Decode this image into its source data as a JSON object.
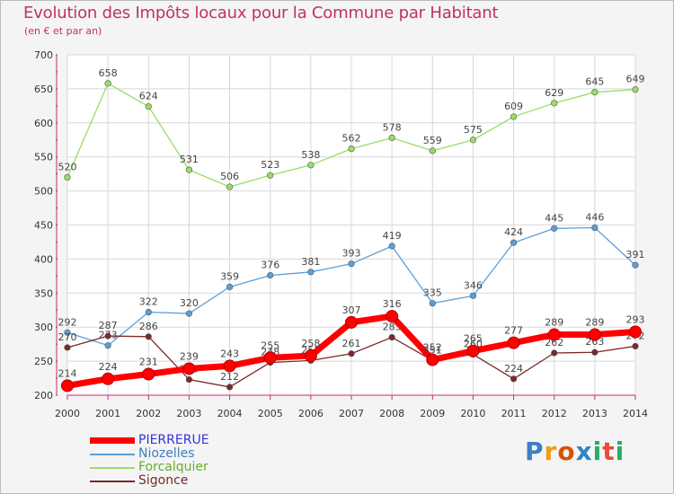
{
  "header": {
    "title": "Evolution des Impôts locaux pour la Commune par Habitant",
    "subtitle": "(en € et par an)"
  },
  "colors": {
    "title": "#c0306b",
    "axis": "#c0306b",
    "grid": "#d8d8d8",
    "background": "#f4f4f4",
    "plot_background": "#ffffff"
  },
  "chart_data": {
    "type": "line",
    "title": "Evolution des Impôts locaux pour la Commune par Habitant",
    "subtitle": "(en € et par an)",
    "xlabel": "",
    "ylabel": "",
    "x": [
      "2000",
      "2001",
      "2002",
      "2003",
      "2004",
      "2005",
      "2006",
      "2007",
      "2008",
      "2009",
      "2010",
      "2011",
      "2012",
      "2013",
      "2014"
    ],
    "ylim": [
      200,
      700
    ],
    "yticks": [
      200,
      250,
      300,
      350,
      400,
      450,
      500,
      550,
      600,
      650,
      700
    ],
    "grid": true,
    "legend_position": "bottom-left",
    "series": [
      {
        "name": "Forcalquier",
        "color": "#99dd66",
        "values": [
          520,
          658,
          624,
          531,
          506,
          523,
          538,
          562,
          578,
          559,
          575,
          609,
          629,
          645,
          649
        ],
        "labels": [
          "520",
          "658",
          "624",
          "531",
          "506",
          "523",
          "538",
          "562",
          "578",
          "559",
          "575",
          "609",
          "629",
          "645",
          "649"
        ]
      },
      {
        "name": "Niozelles",
        "color": "#5b9fd9",
        "values": [
          292,
          273,
          322,
          320,
          359,
          376,
          381,
          393,
          419,
          335,
          346,
          424,
          445,
          446,
          391
        ],
        "labels": [
          "292",
          "273",
          "322",
          "320",
          "359",
          "376",
          "381",
          "393",
          "419",
          "335",
          "346",
          "424",
          "445",
          "446",
          "391"
        ]
      },
      {
        "name": "Sigonce",
        "color": "#7a2a2a",
        "values": [
          270,
          287,
          286,
          223,
          212,
          248,
          251,
          261,
          285,
          251,
          260,
          224,
          262,
          263,
          272
        ],
        "labels": [
          "270",
          "287",
          "286",
          "223",
          "212",
          "248",
          "251",
          "261",
          "285",
          "251",
          "260",
          "224",
          "262",
          "263",
          "272"
        ]
      },
      {
        "name": "PIERRERUE",
        "color": "#ff0000",
        "values": [
          214,
          224,
          231,
          239,
          243,
          255,
          258,
          307,
          316,
          252,
          265,
          277,
          289,
          289,
          293
        ],
        "labels": [
          "214",
          "224",
          "231",
          "239",
          "243",
          "255",
          "258",
          "307",
          "316",
          "252",
          "265",
          "277",
          "289",
          "289",
          "293"
        ]
      }
    ]
  },
  "legend": {
    "items": [
      {
        "label": "PIERRERUE",
        "color": "#ff0000",
        "text_color": "#3333dd"
      },
      {
        "label": "Niozelles",
        "color": "#5b9fd9",
        "text_color": "#3d7fc0"
      },
      {
        "label": "Forcalquier",
        "color": "#99dd66",
        "text_color": "#66aa33"
      },
      {
        "label": "Sigonce",
        "color": "#7a2a2a",
        "text_color": "#7a2a2a"
      }
    ]
  },
  "logo": {
    "text": "Proxiti",
    "letter_colors": [
      "#3a7fc8",
      "#f39c12",
      "#d35400",
      "#2e86c1",
      "#27ae60",
      "#e74c3c",
      "#27ae60"
    ]
  }
}
